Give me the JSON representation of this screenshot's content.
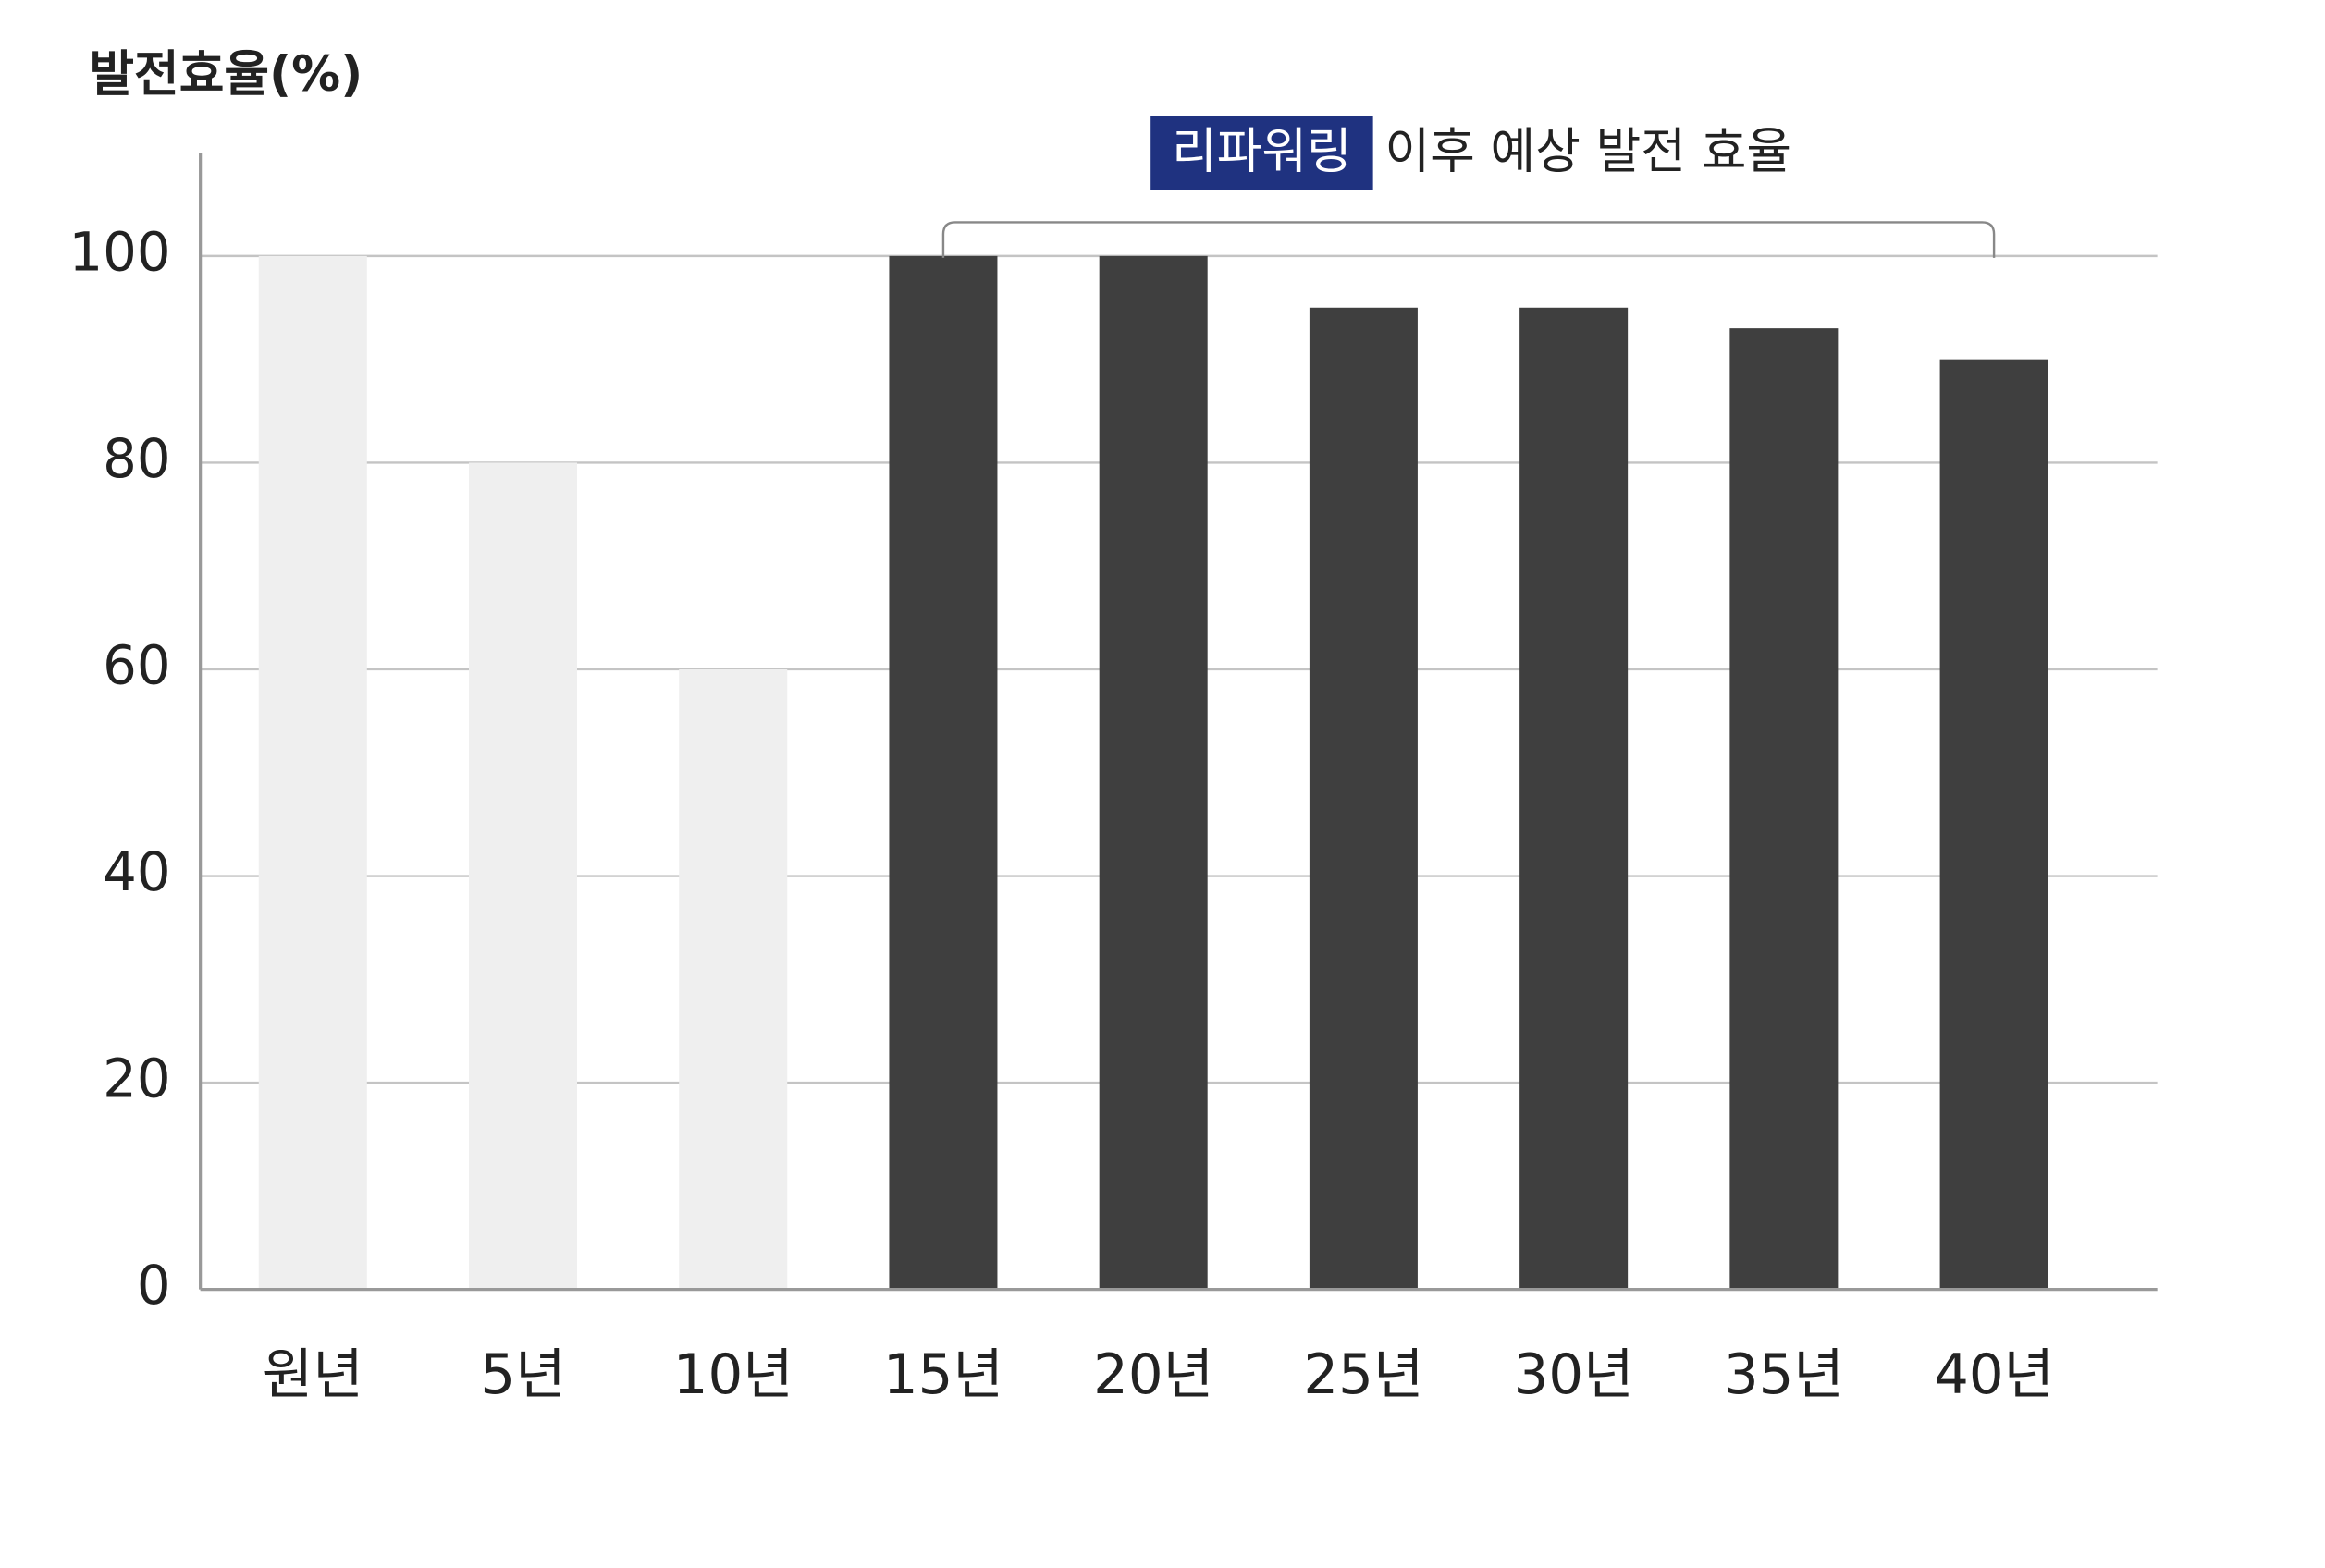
{
  "chart_data": {
    "type": "bar",
    "y_axis_label": "발전효율(%)",
    "annotation_highlight": "리파워링",
    "annotation": "이후 예상 발전 효율",
    "categories": [
      "원년",
      "5년",
      "10년",
      "15년",
      "20년",
      "25년",
      "30년",
      "35년",
      "40년"
    ],
    "values": [
      100,
      80,
      60,
      100,
      100,
      95,
      95,
      93,
      90
    ],
    "colors": [
      "#efefef",
      "#efefef",
      "#efefef",
      "#3f3f3f",
      "#3f3f3f",
      "#3f3f3f",
      "#3f3f3f",
      "#3f3f3f",
      "#3f3f3f"
    ],
    "ylim": [
      0,
      110
    ],
    "yticks": [
      0,
      20,
      40,
      60,
      80,
      100
    ],
    "grid": true
  }
}
